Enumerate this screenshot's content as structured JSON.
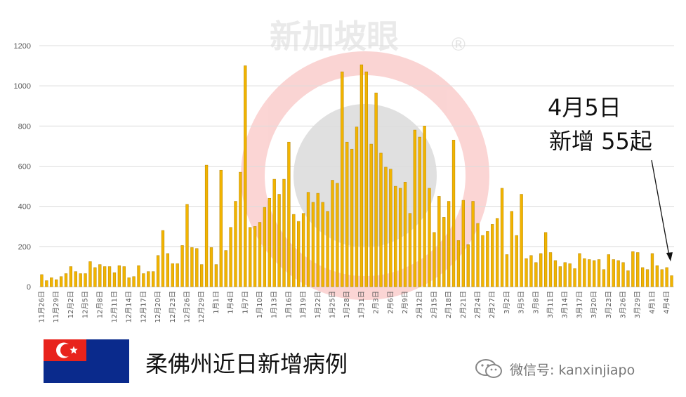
{
  "chart_data": {
    "type": "bar",
    "ylim": [
      0,
      1200
    ],
    "yticks": [
      0,
      200,
      400,
      600,
      800,
      1000,
      1200
    ],
    "grid": "horizontal",
    "bar_color": "#f2b400",
    "bar_edge_color": "#b58400",
    "xtick_labels": [
      "11月26日",
      "11月29日",
      "12月2日",
      "12月5日",
      "12月8日",
      "12月11日",
      "12月14日",
      "12月17日",
      "12月20日",
      "12月23日",
      "12月26日",
      "12月29日",
      "1月1日",
      "1月4日",
      "1月7日",
      "1月10日",
      "1月13日",
      "1月16日",
      "1月19日",
      "1月22日",
      "1月25日",
      "1月28日",
      "1月31日",
      "2月3日",
      "2月6日",
      "2月9日",
      "2月12日",
      "2月15日",
      "2月18日",
      "2月21日",
      "2月24日",
      "2月27日",
      "3月2日",
      "3月5日",
      "3月8日",
      "3月11日",
      "3月14日",
      "3月17日",
      "3月20日",
      "3月23日",
      "3月26日",
      "3月29日",
      "4月1日",
      "4月4日"
    ],
    "values": [
      60,
      30,
      45,
      35,
      50,
      65,
      100,
      75,
      65,
      65,
      125,
      95,
      110,
      100,
      100,
      70,
      105,
      100,
      45,
      50,
      105,
      65,
      75,
      75,
      155,
      280,
      165,
      115,
      115,
      205,
      410,
      195,
      190,
      110,
      605,
      195,
      110,
      580,
      180,
      295,
      425,
      570,
      1100,
      295,
      300,
      320,
      395,
      440,
      535,
      460,
      535,
      720,
      360,
      325,
      365,
      470,
      420,
      465,
      420,
      375,
      530,
      515,
      1070,
      720,
      685,
      795,
      1105,
      1070,
      710,
      965,
      665,
      595,
      585,
      500,
      490,
      520,
      365,
      780,
      745,
      800,
      490,
      270,
      450,
      345,
      425,
      730,
      230,
      430,
      210,
      425,
      315,
      255,
      275,
      310,
      340,
      490,
      160,
      375,
      255,
      460,
      140,
      155,
      120,
      165,
      270,
      170,
      130,
      100,
      120,
      115,
      90,
      165,
      140,
      135,
      130,
      135,
      85,
      160,
      135,
      130,
      120,
      80,
      175,
      170,
      95,
      85,
      165,
      105,
      85,
      95,
      55
    ],
    "annotation_line1": "4月5日",
    "annotation_line2": "新增 55起"
  },
  "watermark": {
    "text": "新加坡眼",
    "mark": "®",
    "color": "#e8231c"
  },
  "footer": {
    "title": "柔佛州近日新增病例",
    "wechat": "微信号: kanxinjiapo",
    "flag_colors": {
      "red": "#e8231c",
      "blue": "#0a2a8c",
      "white": "#ffffff"
    }
  }
}
